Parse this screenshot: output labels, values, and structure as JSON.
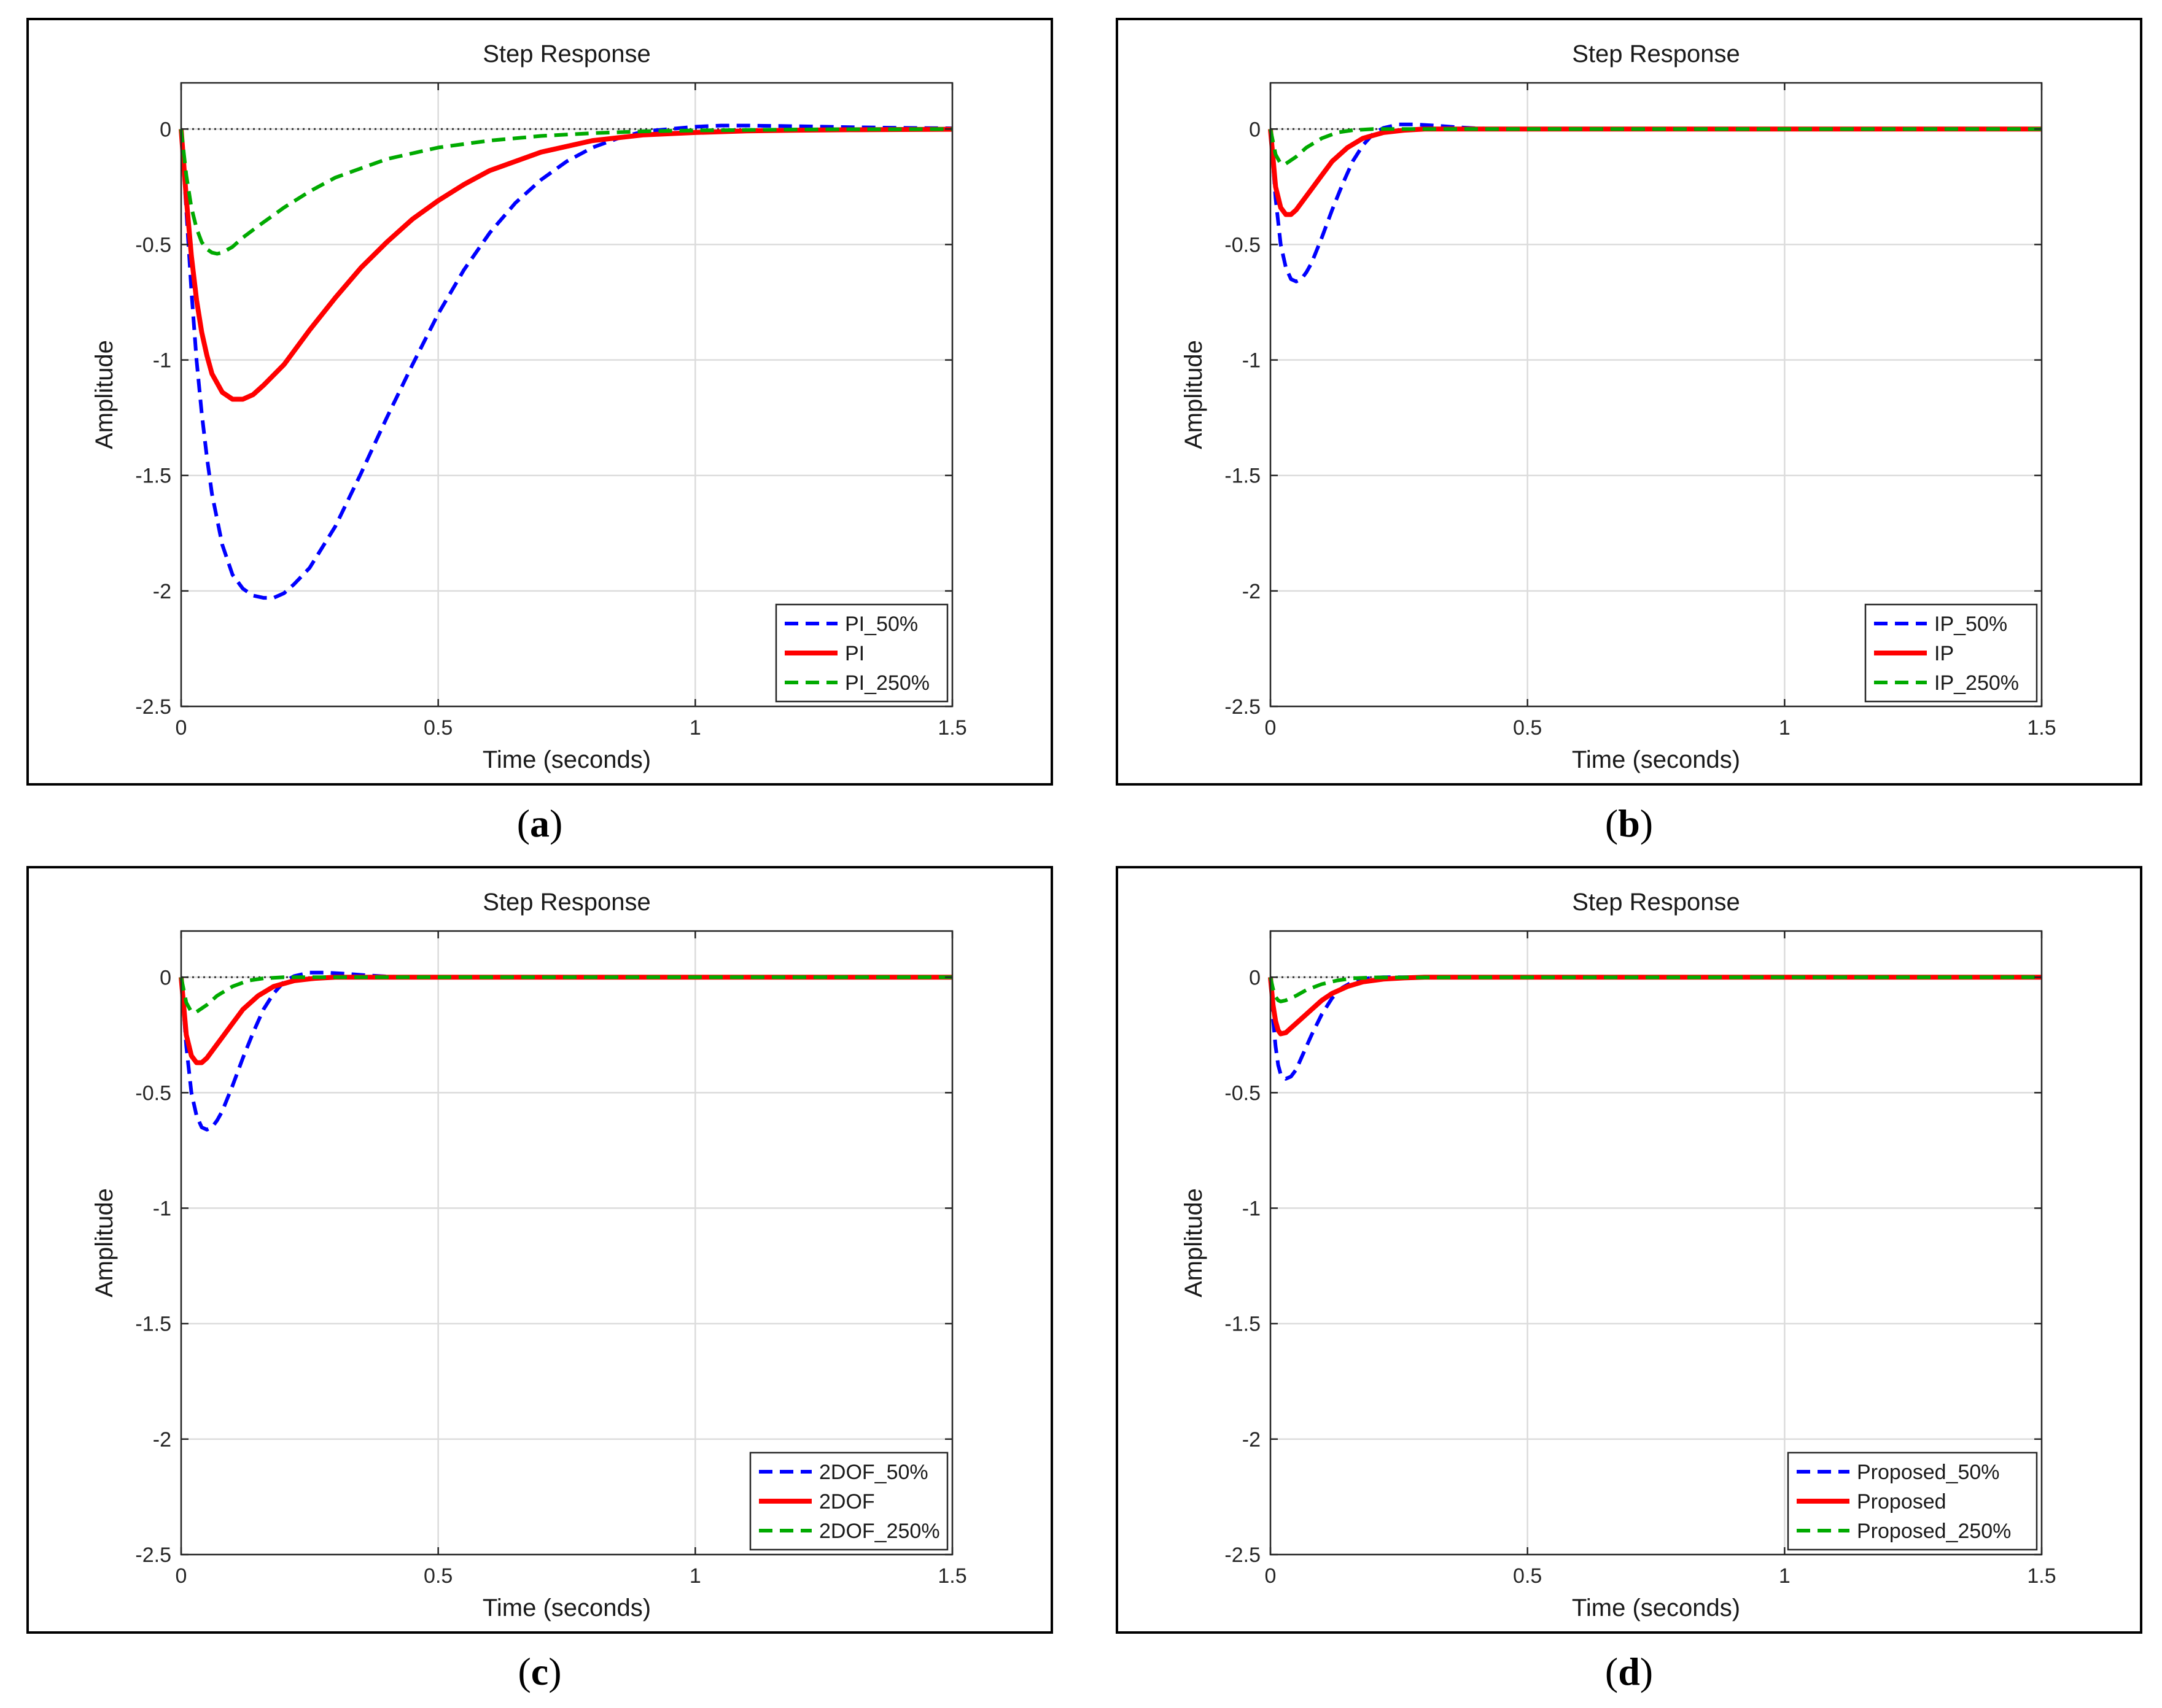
{
  "chart_data": [
    {
      "type": "line",
      "panel_label": "a",
      "title": "Step Response",
      "xlabel": "Time (seconds)",
      "ylabel": "Amplitude",
      "xlim": [
        0,
        1.5
      ],
      "ylim": [
        -2.5,
        0.2
      ],
      "xticks": [
        0,
        0.5,
        1,
        1.5
      ],
      "xtick_labels": [
        "0",
        "0.5",
        "1",
        "1.5"
      ],
      "yticks": [
        0,
        -0.5,
        -1,
        -1.5,
        -2,
        -2.5
      ],
      "ytick_labels": [
        "0",
        "-0.5",
        "-1",
        "-1.5",
        "-2",
        "-2.5"
      ],
      "grid": true,
      "legend_position": "bottom-right",
      "series": [
        {
          "name": "PI_50%",
          "style": "dashed",
          "color": "#0000ff",
          "x": [
            0,
            0.01,
            0.02,
            0.03,
            0.04,
            0.05,
            0.06,
            0.08,
            0.1,
            0.12,
            0.14,
            0.16,
            0.18,
            0.2,
            0.22,
            0.25,
            0.3,
            0.35,
            0.4,
            0.45,
            0.5,
            0.55,
            0.6,
            0.65,
            0.7,
            0.75,
            0.8,
            0.85,
            0.9,
            0.95,
            1.0,
            1.05,
            1.1,
            1.2,
            1.3,
            1.4,
            1.5
          ],
          "y": [
            0,
            -0.35,
            -0.7,
            -1.0,
            -1.23,
            -1.42,
            -1.58,
            -1.8,
            -1.93,
            -1.99,
            -2.02,
            -2.03,
            -2.03,
            -2.01,
            -1.97,
            -1.9,
            -1.72,
            -1.49,
            -1.25,
            -1.02,
            -0.8,
            -0.61,
            -0.45,
            -0.32,
            -0.22,
            -0.14,
            -0.08,
            -0.04,
            -0.01,
            0.0,
            0.01,
            0.015,
            0.015,
            0.012,
            0.008,
            0.005,
            0.003
          ]
        },
        {
          "name": "PI",
          "style": "solid",
          "color": "#ff0000",
          "x": [
            0,
            0.01,
            0.02,
            0.03,
            0.04,
            0.05,
            0.06,
            0.08,
            0.1,
            0.12,
            0.14,
            0.16,
            0.2,
            0.25,
            0.3,
            0.35,
            0.4,
            0.45,
            0.5,
            0.55,
            0.6,
            0.7,
            0.8,
            0.9,
            1.0,
            1.1,
            1.2,
            1.3,
            1.4,
            1.5
          ],
          "y": [
            0,
            -0.3,
            -0.55,
            -0.74,
            -0.88,
            -0.98,
            -1.06,
            -1.14,
            -1.17,
            -1.17,
            -1.15,
            -1.11,
            -1.02,
            -0.87,
            -0.73,
            -0.6,
            -0.49,
            -0.39,
            -0.31,
            -0.24,
            -0.18,
            -0.1,
            -0.05,
            -0.025,
            -0.015,
            -0.008,
            -0.005,
            -0.003,
            -0.002,
            -0.001
          ]
        },
        {
          "name": "PI_250%",
          "style": "dashed",
          "color": "#00aa00",
          "x": [
            0,
            0.01,
            0.02,
            0.03,
            0.04,
            0.05,
            0.06,
            0.07,
            0.08,
            0.1,
            0.12,
            0.15,
            0.2,
            0.25,
            0.3,
            0.35,
            0.4,
            0.5,
            0.6,
            0.7,
            0.8,
            0.9,
            1.0,
            1.1,
            1.2,
            1.3,
            1.4,
            1.5
          ],
          "y": [
            0,
            -0.2,
            -0.34,
            -0.43,
            -0.49,
            -0.52,
            -0.535,
            -0.54,
            -0.535,
            -0.51,
            -0.47,
            -0.42,
            -0.34,
            -0.27,
            -0.21,
            -0.17,
            -0.13,
            -0.08,
            -0.05,
            -0.03,
            -0.018,
            -0.01,
            -0.006,
            -0.004,
            -0.002,
            -0.001,
            -0.001,
            0.0
          ]
        }
      ]
    },
    {
      "type": "line",
      "panel_label": "b",
      "title": "Step Response",
      "xlabel": "Time (seconds)",
      "ylabel": "Amplitude",
      "xlim": [
        0,
        1.5
      ],
      "ylim": [
        -2.5,
        0.2
      ],
      "xticks": [
        0,
        0.5,
        1,
        1.5
      ],
      "xtick_labels": [
        "0",
        "0.5",
        "1",
        "1.5"
      ],
      "yticks": [
        0,
        -0.5,
        -1,
        -1.5,
        -2,
        -2.5
      ],
      "ytick_labels": [
        "0",
        "-0.5",
        "-1",
        "-1.5",
        "-2",
        "-2.5"
      ],
      "grid": true,
      "legend_position": "bottom-right",
      "series": [
        {
          "name": "IP_50%",
          "style": "dashed",
          "color": "#0000ff",
          "x": [
            0,
            0.01,
            0.02,
            0.03,
            0.04,
            0.05,
            0.06,
            0.07,
            0.08,
            0.1,
            0.12,
            0.14,
            0.16,
            0.18,
            0.2,
            0.22,
            0.25,
            0.28,
            0.32,
            0.36,
            0.4,
            0.45,
            1.5
          ],
          "y": [
            0,
            -0.3,
            -0.5,
            -0.6,
            -0.65,
            -0.66,
            -0.65,
            -0.62,
            -0.58,
            -0.47,
            -0.35,
            -0.24,
            -0.14,
            -0.07,
            -0.02,
            0.005,
            0.02,
            0.02,
            0.015,
            0.008,
            0.003,
            0.0,
            0.0
          ]
        },
        {
          "name": "IP",
          "style": "solid",
          "color": "#ff0000",
          "x": [
            0,
            0.01,
            0.02,
            0.03,
            0.04,
            0.05,
            0.06,
            0.08,
            0.1,
            0.12,
            0.15,
            0.18,
            0.22,
            0.26,
            0.3,
            1.5
          ],
          "y": [
            0,
            -0.25,
            -0.34,
            -0.37,
            -0.37,
            -0.35,
            -0.32,
            -0.26,
            -0.2,
            -0.14,
            -0.08,
            -0.04,
            -0.015,
            -0.005,
            0.0,
            0.0
          ]
        },
        {
          "name": "IP_250%",
          "style": "dashed",
          "color": "#00aa00",
          "x": [
            0,
            0.01,
            0.02,
            0.03,
            0.05,
            0.07,
            0.1,
            0.13,
            0.16,
            0.2,
            1.5
          ],
          "y": [
            0,
            -0.11,
            -0.15,
            -0.15,
            -0.12,
            -0.08,
            -0.04,
            -0.015,
            -0.005,
            0.0,
            0.0
          ]
        }
      ]
    },
    {
      "type": "line",
      "panel_label": "c",
      "title": "Step Response",
      "xlabel": "Time (seconds)",
      "ylabel": "Amplitude",
      "xlim": [
        0,
        1.5
      ],
      "ylim": [
        -2.5,
        0.2
      ],
      "xticks": [
        0,
        0.5,
        1,
        1.5
      ],
      "xtick_labels": [
        "0",
        "0.5",
        "1",
        "1.5"
      ],
      "yticks": [
        0,
        -0.5,
        -1,
        -1.5,
        -2,
        -2.5
      ],
      "ytick_labels": [
        "0",
        "-0.5",
        "-1",
        "-1.5",
        "-2",
        "-2.5"
      ],
      "grid": true,
      "legend_position": "bottom-right",
      "series": [
        {
          "name": "2DOF_50%",
          "style": "dashed",
          "color": "#0000ff",
          "x": [
            0,
            0.01,
            0.02,
            0.03,
            0.04,
            0.05,
            0.06,
            0.07,
            0.08,
            0.1,
            0.12,
            0.14,
            0.16,
            0.18,
            0.2,
            0.22,
            0.25,
            0.28,
            0.32,
            0.36,
            0.4,
            0.45,
            1.5
          ],
          "y": [
            0,
            -0.3,
            -0.5,
            -0.6,
            -0.65,
            -0.66,
            -0.65,
            -0.62,
            -0.58,
            -0.47,
            -0.35,
            -0.24,
            -0.14,
            -0.07,
            -0.02,
            0.005,
            0.02,
            0.02,
            0.015,
            0.008,
            0.003,
            0.0,
            0.0
          ]
        },
        {
          "name": "2DOF",
          "style": "solid",
          "color": "#ff0000",
          "x": [
            0,
            0.01,
            0.02,
            0.03,
            0.04,
            0.05,
            0.06,
            0.08,
            0.1,
            0.12,
            0.15,
            0.18,
            0.22,
            0.26,
            0.3,
            1.5
          ],
          "y": [
            0,
            -0.25,
            -0.34,
            -0.37,
            -0.37,
            -0.35,
            -0.32,
            -0.26,
            -0.2,
            -0.14,
            -0.08,
            -0.04,
            -0.015,
            -0.005,
            0.0,
            0.0
          ]
        },
        {
          "name": "2DOF_250%",
          "style": "dashed",
          "color": "#00aa00",
          "x": [
            0,
            0.01,
            0.02,
            0.03,
            0.05,
            0.07,
            0.1,
            0.13,
            0.16,
            0.2,
            1.5
          ],
          "y": [
            0,
            -0.11,
            -0.15,
            -0.15,
            -0.12,
            -0.08,
            -0.04,
            -0.015,
            -0.005,
            0.0,
            0.0
          ]
        }
      ]
    },
    {
      "type": "line",
      "panel_label": "d",
      "title": "Step Response",
      "xlabel": "Time (seconds)",
      "ylabel": "Amplitude",
      "xlim": [
        0,
        1.5
      ],
      "ylim": [
        -2.5,
        0.2
      ],
      "xticks": [
        0,
        0.5,
        1,
        1.5
      ],
      "xtick_labels": [
        "0",
        "0.5",
        "1",
        "1.5"
      ],
      "yticks": [
        0,
        -0.5,
        -1,
        -1.5,
        -2,
        -2.5
      ],
      "ytick_labels": [
        "0",
        "-0.5",
        "-1",
        "-1.5",
        "-2",
        "-2.5"
      ],
      "grid": true,
      "legend_position": "bottom-right",
      "series": [
        {
          "name": "Proposed_50%",
          "style": "dashed",
          "color": "#0000ff",
          "x": [
            0,
            0.005,
            0.01,
            0.015,
            0.02,
            0.03,
            0.04,
            0.05,
            0.06,
            0.08,
            0.1,
            0.12,
            0.14,
            0.16,
            0.18,
            0.2,
            0.22,
            1.5
          ],
          "y": [
            0,
            -0.18,
            -0.3,
            -0.38,
            -0.42,
            -0.44,
            -0.43,
            -0.4,
            -0.35,
            -0.25,
            -0.16,
            -0.09,
            -0.045,
            -0.02,
            -0.008,
            -0.002,
            0.0,
            0.0
          ]
        },
        {
          "name": "Proposed",
          "style": "solid",
          "color": "#ff0000",
          "x": [
            0,
            0.005,
            0.01,
            0.015,
            0.02,
            0.03,
            0.04,
            0.05,
            0.06,
            0.08,
            0.1,
            0.12,
            0.15,
            0.18,
            0.22,
            0.26,
            0.3,
            1.5
          ],
          "y": [
            0,
            -0.12,
            -0.19,
            -0.23,
            -0.245,
            -0.24,
            -0.22,
            -0.2,
            -0.18,
            -0.14,
            -0.1,
            -0.07,
            -0.04,
            -0.02,
            -0.008,
            -0.003,
            0.0,
            0.0
          ]
        },
        {
          "name": "Proposed_250%",
          "style": "dashed",
          "color": "#00aa00",
          "x": [
            0,
            0.005,
            0.01,
            0.015,
            0.02,
            0.03,
            0.05,
            0.07,
            0.1,
            0.13,
            0.16,
            0.2,
            1.5
          ],
          "y": [
            0,
            -0.05,
            -0.085,
            -0.1,
            -0.105,
            -0.1,
            -0.08,
            -0.055,
            -0.03,
            -0.014,
            -0.005,
            -0.001,
            0.0
          ]
        }
      ]
    }
  ]
}
